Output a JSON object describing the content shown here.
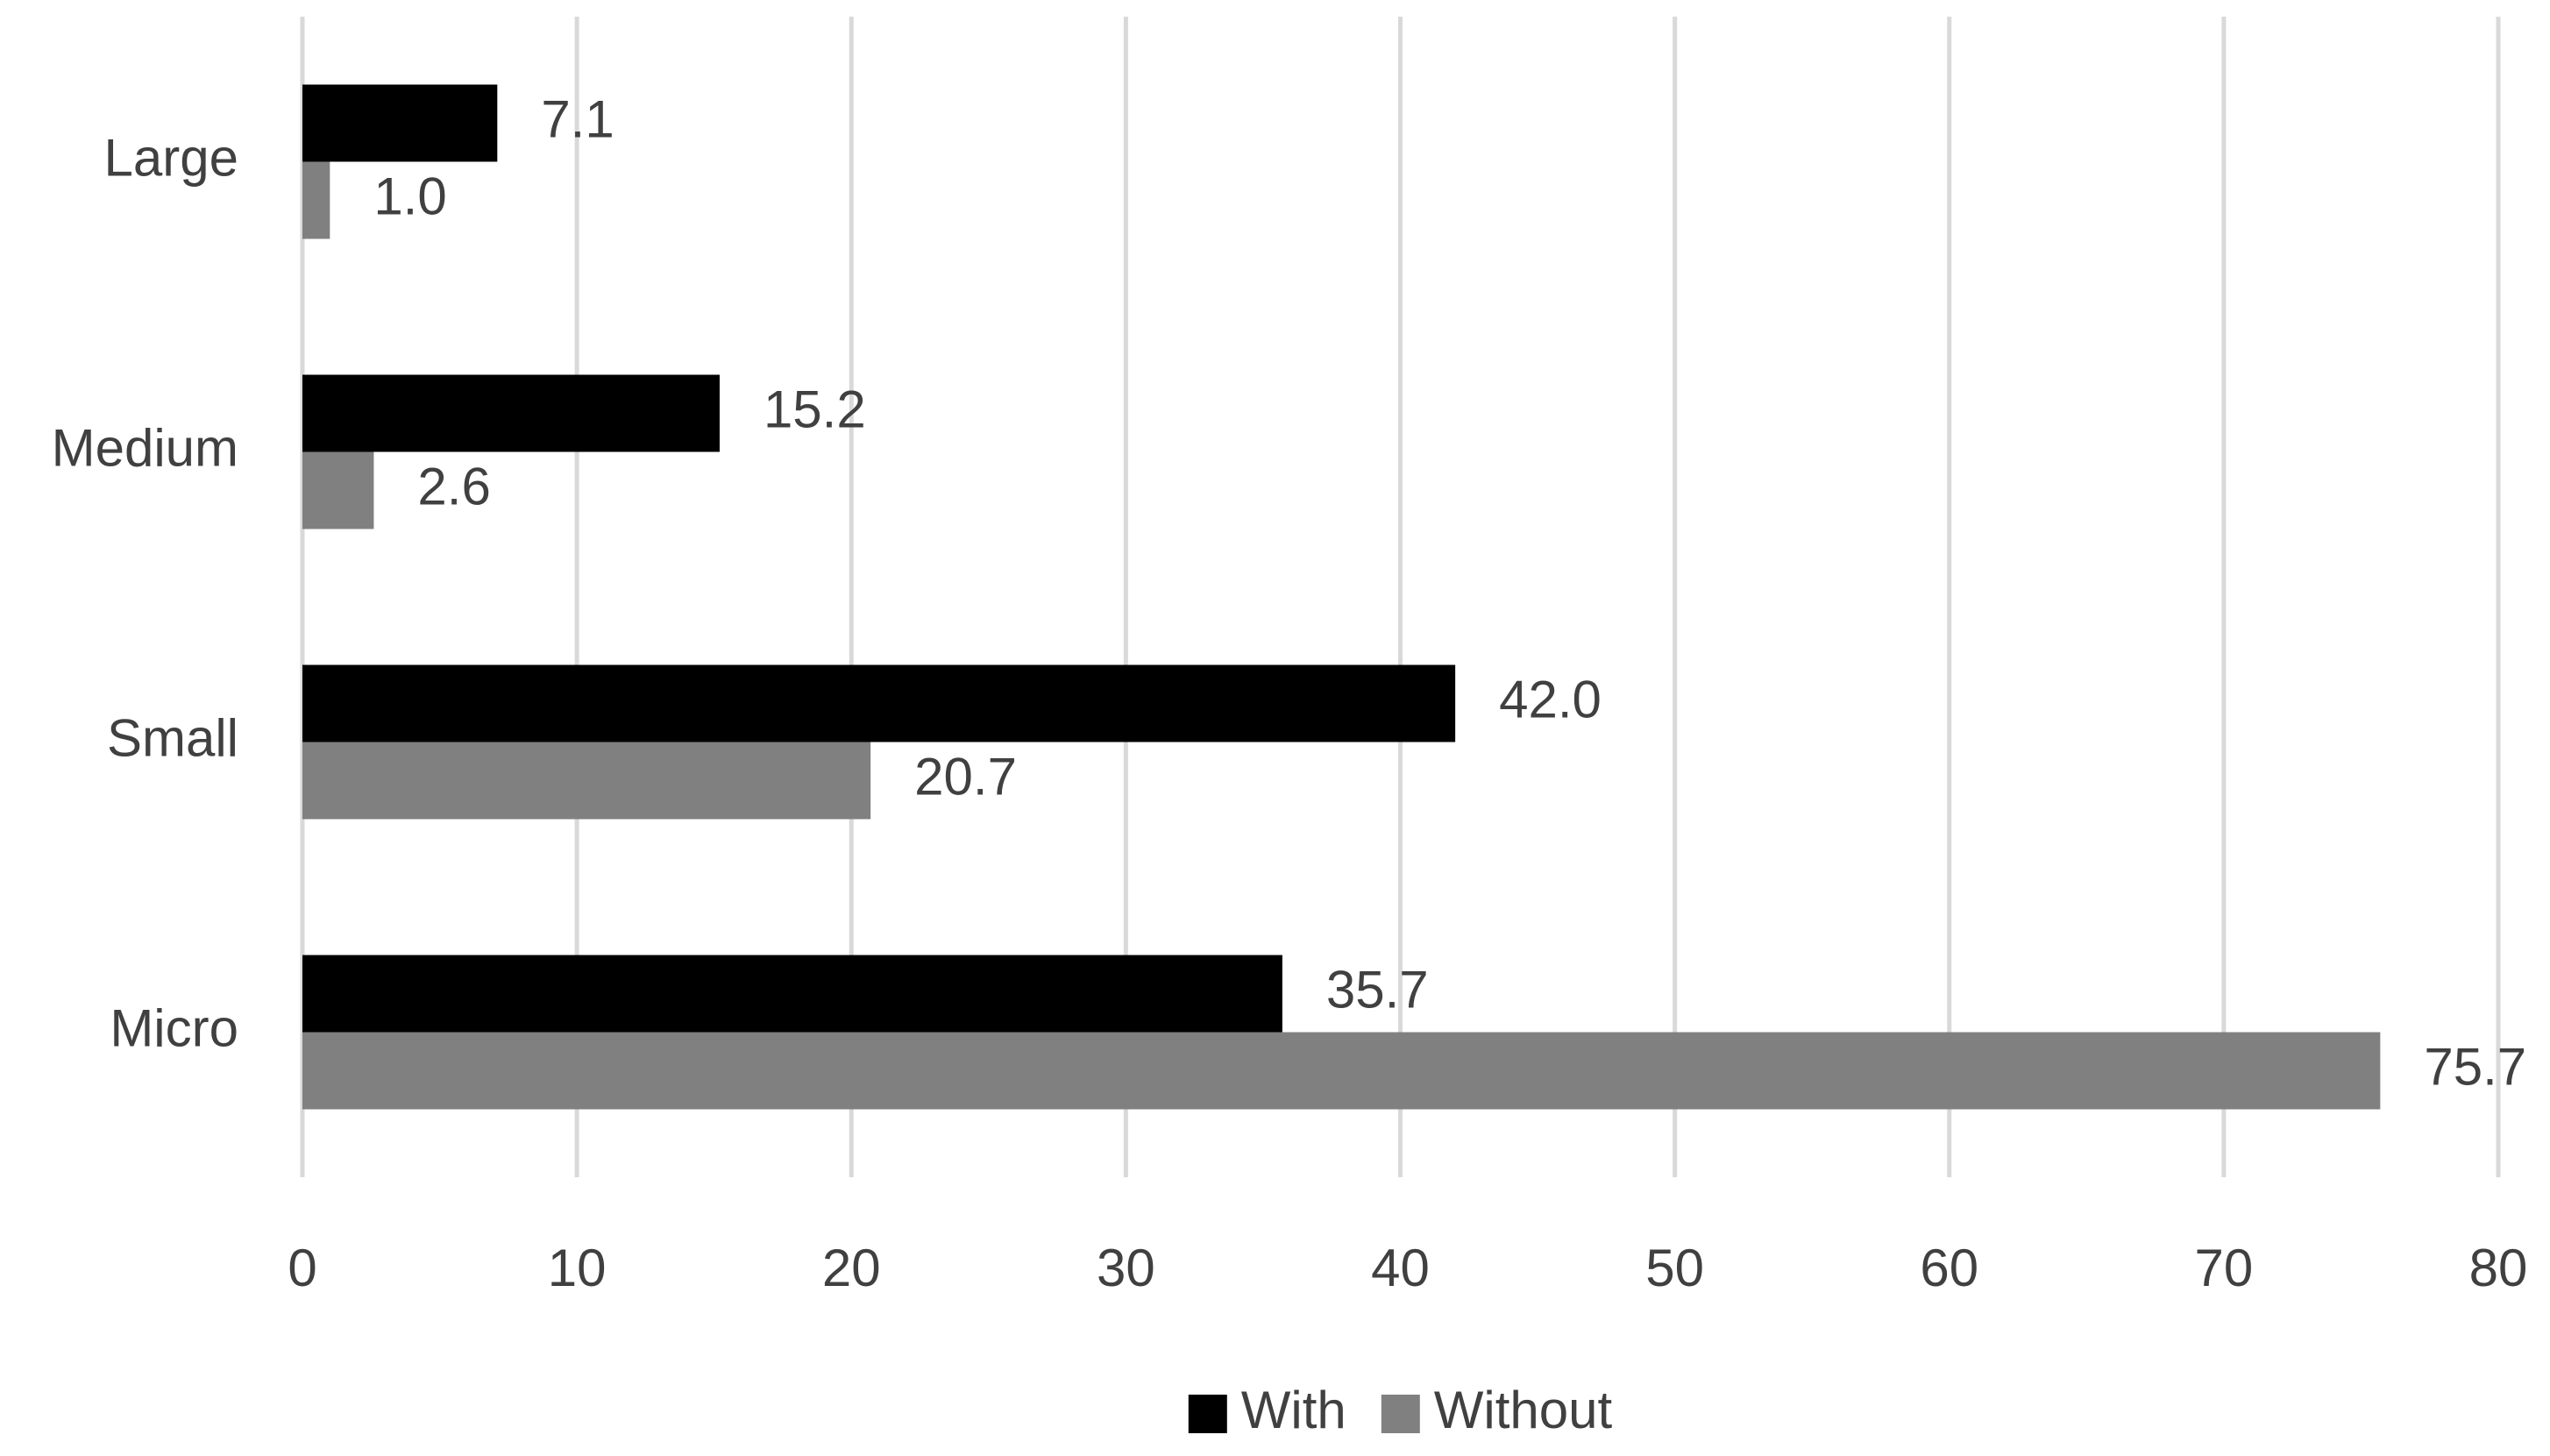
{
  "chart_data": {
    "type": "hbar",
    "categories": [
      "Large",
      "Medium",
      "Small",
      "Micro"
    ],
    "series": [
      {
        "name": "With",
        "color": "#000000",
        "values": [
          7.1,
          15.2,
          42.0,
          35.7
        ],
        "value_labels": [
          "7.1",
          "15.2",
          "42.0",
          "35.7"
        ]
      },
      {
        "name": "Without",
        "color": "#808080",
        "values": [
          1.0,
          2.6,
          20.7,
          75.7
        ],
        "value_labels": [
          "1.0",
          "2.6",
          "20.7",
          "75.7"
        ]
      }
    ],
    "xlim": [
      0,
      80
    ],
    "xticks": [
      0,
      10,
      20,
      30,
      40,
      50,
      60,
      70,
      80
    ],
    "grid": true,
    "legend": "bottom"
  }
}
